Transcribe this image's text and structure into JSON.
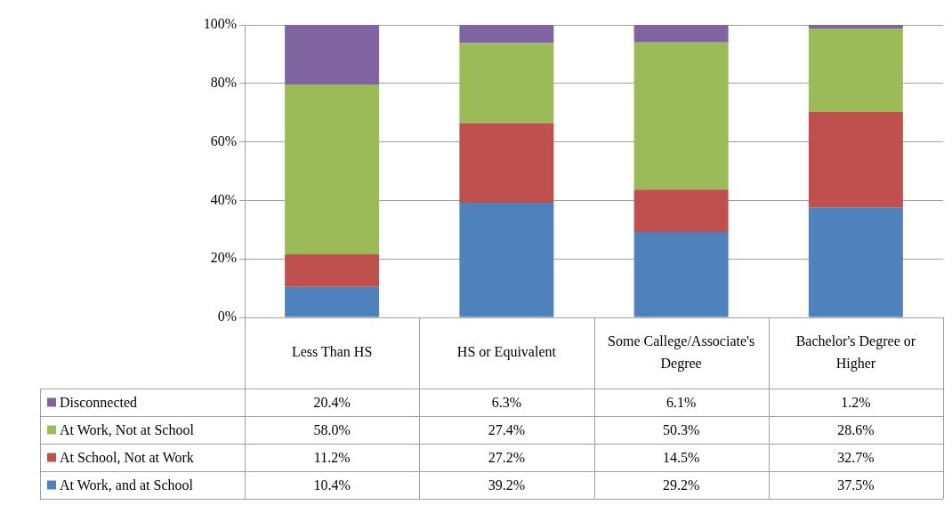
{
  "chart_data": {
    "type": "bar",
    "stacked": true,
    "categories": [
      "Less Than HS",
      "HS or Equivalent",
      "Some Callege/Associate's Degree",
      "Bachelor's Degree or Higher"
    ],
    "series": [
      {
        "name": "At Work, and at School",
        "color": "#4f81bd",
        "values": [
          10.4,
          39.2,
          29.2,
          37.5
        ],
        "value_labels": [
          "10.4%",
          "39.2%",
          "29.2%",
          "37.5%"
        ]
      },
      {
        "name": "At School, Not at Work",
        "color": "#c0504d",
        "values": [
          11.2,
          27.2,
          14.5,
          32.7
        ],
        "value_labels": [
          "11.2%",
          "27.2%",
          "14.5%",
          "32.7%"
        ]
      },
      {
        "name": "At Work, Not at School",
        "color": "#9bbb59",
        "values": [
          58.0,
          27.4,
          50.3,
          28.6
        ],
        "value_labels": [
          "58.0%",
          "27.4%",
          "50.3%",
          "28.6%"
        ]
      },
      {
        "name": "Disconnected",
        "color": "#8064a2",
        "values": [
          20.4,
          6.3,
          6.1,
          1.2
        ],
        "value_labels": [
          "20.4%",
          "6.3%",
          "6.1%",
          "1.2%"
        ]
      }
    ],
    "ylim": [
      0,
      100
    ],
    "yticks": [
      {
        "value": 0,
        "label": "0%"
      },
      {
        "value": 20,
        "label": "20%"
      },
      {
        "value": 40,
        "label": "40%"
      },
      {
        "value": 60,
        "label": "60%"
      },
      {
        "value": 80,
        "label": "80%"
      },
      {
        "value": 100,
        "label": "100%"
      }
    ],
    "grid": "y",
    "legend": "bottom"
  }
}
